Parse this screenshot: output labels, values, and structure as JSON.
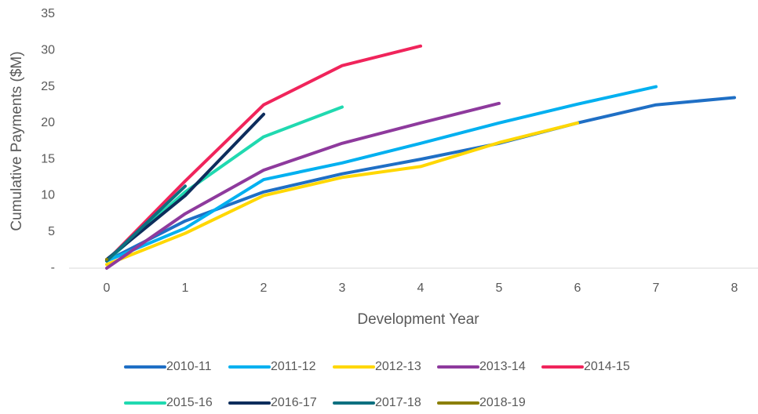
{
  "chart_data": {
    "type": "line",
    "x_label": "Development Year",
    "y_label": "Cumulative Payments ($M)",
    "x": [
      0,
      1,
      2,
      3,
      4,
      5,
      6,
      7,
      8
    ],
    "xlim": [
      -0.3,
      8.3
    ],
    "xticks": [
      0,
      1,
      2,
      3,
      4,
      5,
      6,
      7,
      8
    ],
    "ylim": [
      0,
      35
    ],
    "yticks": [
      {
        "value": 0,
        "label": "-"
      },
      5,
      10,
      15,
      20,
      25,
      30,
      35
    ],
    "grid": false,
    "legend": "bottom",
    "series": [
      {
        "name": "2010-11",
        "color": "#1f6fc5",
        "values": [
          1,
          6.5,
          10.5,
          13,
          15,
          17.2,
          20,
          22.5,
          23.5
        ]
      },
      {
        "name": "2011-12",
        "color": "#00b0f0",
        "values": [
          1,
          5.5,
          12.2,
          14.5,
          17.2,
          20,
          22.6,
          25,
          null
        ]
      },
      {
        "name": "2012-13",
        "color": "#ffd700",
        "values": [
          0.5,
          4.8,
          10,
          12.5,
          14,
          17.3,
          20,
          null,
          null
        ]
      },
      {
        "name": "2013-14",
        "color": "#8e3a9d",
        "values": [
          0,
          7.5,
          13.5,
          17.2,
          20,
          22.7,
          null,
          null,
          null
        ]
      },
      {
        "name": "2014-15",
        "color": "#f0245b",
        "values": [
          1,
          12,
          22.5,
          27.9,
          30.6,
          null,
          null,
          null,
          null
        ]
      },
      {
        "name": "2015-16",
        "color": "#20d9b0",
        "values": [
          1,
          10.5,
          18.1,
          22.2,
          null,
          null,
          null,
          null,
          null
        ]
      },
      {
        "name": "2016-17",
        "color": "#0d2d5c",
        "values": [
          1.2,
          10,
          21.2,
          null,
          null,
          null,
          null,
          null,
          null
        ]
      },
      {
        "name": "2017-18",
        "color": "#0e7080",
        "values": [
          1,
          11.3,
          null,
          null,
          null,
          null,
          null,
          null,
          null
        ]
      },
      {
        "name": "2018-19",
        "color": "#8b7f00",
        "values": [
          1.2,
          null,
          null,
          null,
          null,
          null,
          null,
          null,
          null
        ]
      }
    ]
  }
}
